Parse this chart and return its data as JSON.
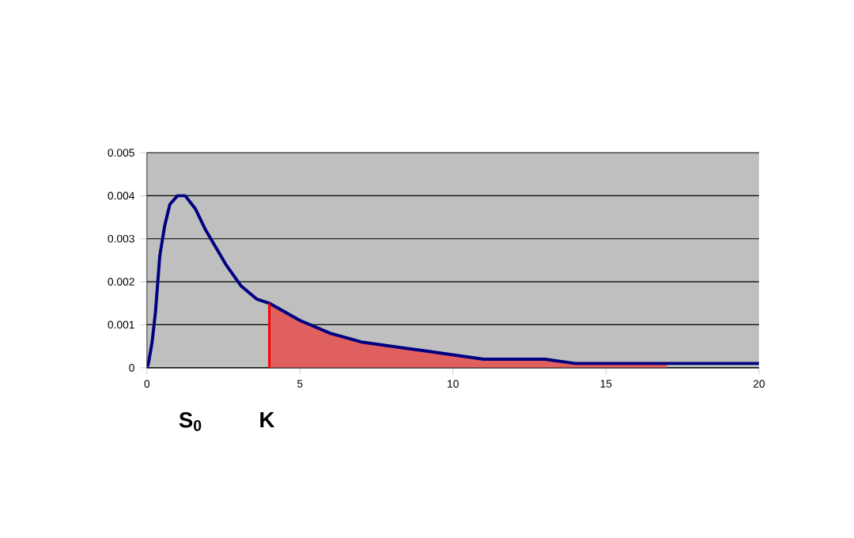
{
  "chart_data": {
    "type": "line",
    "x": [
      0,
      0.05,
      0.17,
      0.28,
      0.42,
      0.58,
      0.75,
      1.0,
      1.25,
      1.58,
      1.92,
      2.25,
      2.58,
      3.08,
      3.58,
      4,
      5,
      6,
      7,
      8,
      9,
      10,
      11,
      12,
      13,
      14,
      15,
      16,
      17,
      18,
      19,
      20
    ],
    "series": [
      {
        "color": "#000080",
        "values": [
          0,
          0.0001,
          0.0006,
          0.0013,
          0.0026,
          0.0033,
          0.0038,
          0.004,
          0.004,
          0.0037,
          0.0032,
          0.0028,
          0.0024,
          0.0019,
          0.0016,
          0.0015,
          0.0011,
          0.0008,
          0.0006,
          0.0005,
          0.0004,
          0.0003,
          0.0002,
          0.0002,
          0.0002,
          0.0001,
          0.0001,
          0.0001,
          0.0001,
          0.0001,
          0.0001,
          0.0001
        ]
      },
      {
        "type": "area",
        "color": "#e06060",
        "x": [
          4,
          5,
          6,
          7,
          8,
          9,
          10,
          11,
          12,
          13,
          14,
          15,
          16,
          17
        ],
        "values": [
          0.0015,
          0.0011,
          0.0008,
          0.0006,
          0.0005,
          0.0004,
          0.0003,
          0.0002,
          0.0002,
          0.0002,
          0.0001,
          0.0001,
          0.0001,
          0.0001
        ]
      }
    ],
    "xlim": [
      0,
      20
    ],
    "xticks": [
      0,
      5,
      10,
      15,
      20
    ],
    "ylim": [
      0,
      0.005
    ],
    "yticks": [
      0,
      0.001,
      0.002,
      0.003,
      0.004,
      0.005
    ],
    "grid": "y",
    "ref_lines": [
      {
        "axis": "x",
        "value": 4,
        "color": "#ff0000"
      }
    ],
    "annotations": [
      "S$_{0}$",
      "K"
    ]
  }
}
